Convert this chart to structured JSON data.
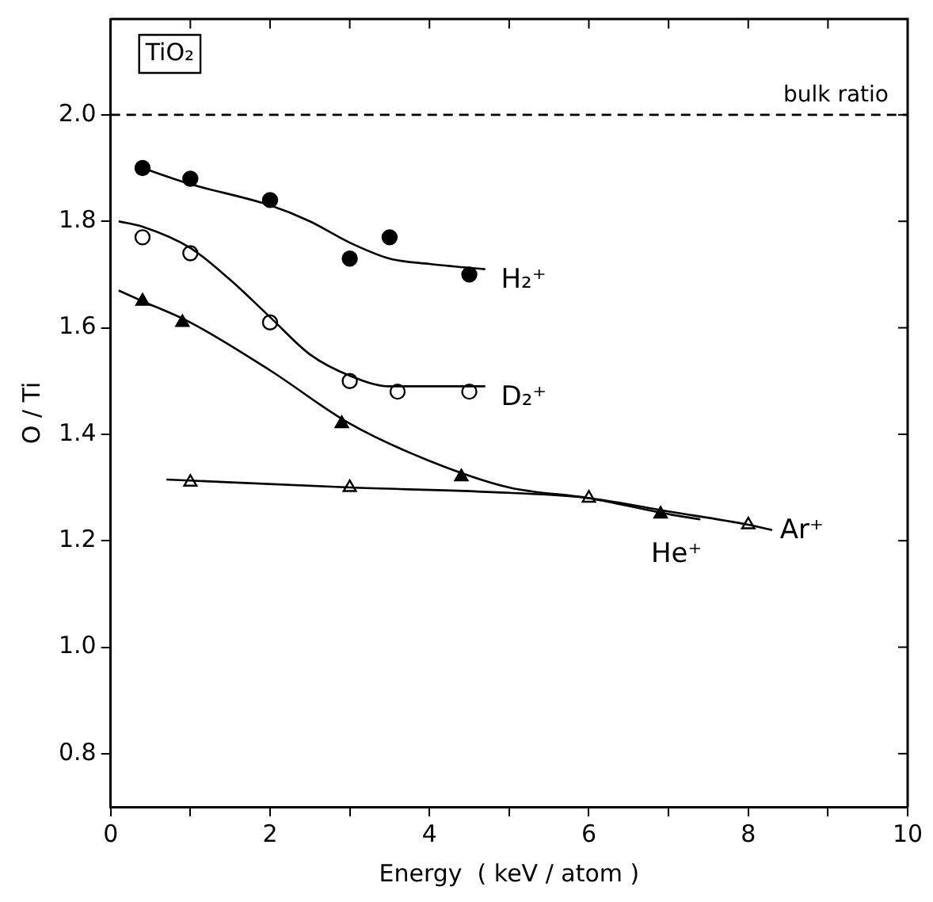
{
  "chart_data": {
    "type": "scatter",
    "xlabel": "Energy  ( keV / atom )",
    "ylabel": "O / Ti",
    "annotations": [
      "TiO₂"
    ],
    "xlim": [
      0,
      10
    ],
    "xticks": [
      0,
      {
        "value": 1,
        "label": null
      },
      2,
      {
        "value": 3,
        "label": null
      },
      4,
      {
        "value": 5,
        "label": null
      },
      6,
      {
        "value": 7,
        "label": null
      },
      8,
      {
        "value": 9,
        "label": null
      },
      10
    ],
    "ylim": [
      0.7,
      2.18
    ],
    "yticks": [
      {
        "value": 0.8,
        "label": "0.8"
      },
      {
        "value": 1.0,
        "label": "1.0"
      },
      {
        "value": 1.2,
        "label": "1.2"
      },
      {
        "value": 1.4,
        "label": "1.4"
      },
      {
        "value": 1.6,
        "label": "1.6"
      },
      {
        "value": 1.8,
        "label": "1.8"
      },
      {
        "value": 2.0,
        "label": "2.0"
      }
    ],
    "grid": false,
    "legend": false,
    "ref_lines": [
      {
        "axis": "y",
        "value": 2.0,
        "label": "bulk ratio",
        "line_style": "dashed",
        "color": "#000000"
      }
    ],
    "series": [
      {
        "type": "line",
        "color": "#000000",
        "marker": "none",
        "x": [
          0.4,
          1,
          2,
          2.5,
          3,
          3.5,
          4,
          4.7
        ],
        "values": [
          1.9,
          1.87,
          1.83,
          1.8,
          1.76,
          1.73,
          1.72,
          1.71
        ]
      },
      {
        "type": "line",
        "color": "#000000",
        "marker": "none",
        "x": [
          0.1,
          0.4,
          1,
          1.5,
          2,
          2.5,
          3,
          3.5,
          4.7
        ],
        "values": [
          1.8,
          1.79,
          1.75,
          1.69,
          1.62,
          1.55,
          1.51,
          1.49,
          1.49
        ]
      },
      {
        "type": "line",
        "color": "#000000",
        "marker": "none",
        "x": [
          0.1,
          0.4,
          1,
          2,
          3,
          4,
          5,
          6,
          7,
          7.4
        ],
        "values": [
          1.67,
          1.65,
          1.61,
          1.52,
          1.42,
          1.35,
          1.3,
          1.28,
          1.25,
          1.24
        ]
      },
      {
        "type": "line",
        "color": "#000000",
        "marker": "none",
        "x": [
          0.7,
          3,
          5,
          6,
          7,
          8,
          8.3
        ],
        "values": [
          1.315,
          1.3,
          1.29,
          1.28,
          1.255,
          1.23,
          1.22
        ]
      },
      {
        "name": "H₂⁺",
        "color": "#000000",
        "marker": "circle",
        "x": [
          0.4,
          1,
          2,
          3,
          3.5,
          4.5
        ],
        "values": [
          1.9,
          1.88,
          1.84,
          1.73,
          1.77,
          1.7
        ]
      },
      {
        "name": "D₂⁺",
        "color": "#ffffff",
        "marker": "circle",
        "x": [
          0.4,
          1,
          2,
          3,
          3.6,
          4.5
        ],
        "values": [
          1.77,
          1.74,
          1.61,
          1.5,
          1.48,
          1.48
        ]
      },
      {
        "name": "He⁺",
        "color": "#000000",
        "marker": "triangle",
        "x": [
          0.4,
          0.9,
          2.9,
          4.4,
          6.9
        ],
        "values": [
          1.65,
          1.61,
          1.42,
          1.32,
          1.25
        ]
      },
      {
        "name": "Ar⁺",
        "color": "#ffffff",
        "marker": "triangle",
        "x": [
          1,
          3,
          6,
          8
        ],
        "values": [
          1.31,
          1.3,
          1.28,
          1.23
        ]
      }
    ]
  }
}
